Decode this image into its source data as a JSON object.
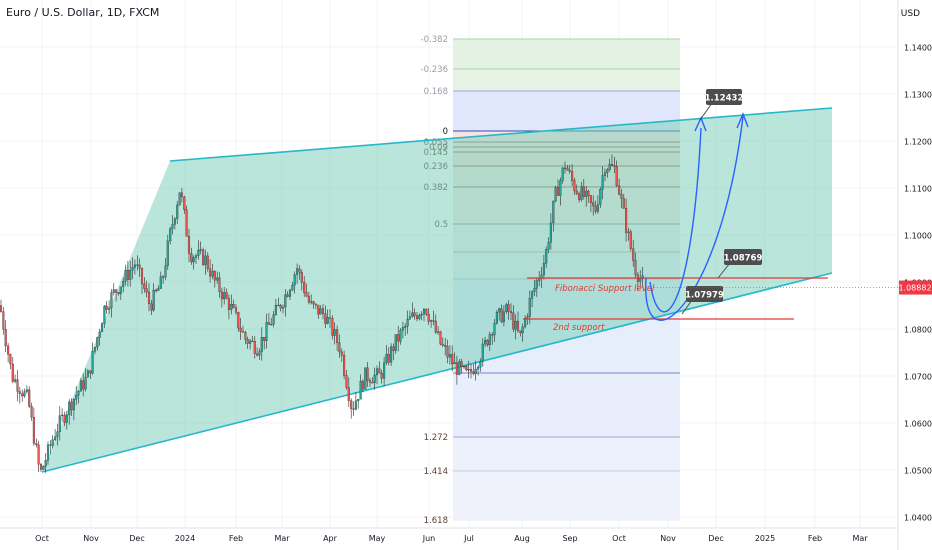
{
  "chart_data": {
    "type": "candlestick",
    "title": "Euro / U.S. Dollar, 1D, FXCM",
    "currency": "USD",
    "price_ticks": [
      "1.14000",
      "1.13000",
      "1.12000",
      "1.11000",
      "1.10000",
      "1.09000",
      "1.08000",
      "1.07000",
      "1.06000",
      "1.05000",
      "1.04000"
    ],
    "time_ticks": [
      "Oct",
      "Nov",
      "Dec",
      "2024",
      "Feb",
      "Mar",
      "Apr",
      "May",
      "Jun",
      "Jul",
      "Aug",
      "Sep",
      "Oct",
      "Nov",
      "Dec",
      "2025",
      "Feb",
      "Mar"
    ],
    "current_price": "1.08882",
    "fib_levels": [
      "-0.382",
      "-0.236",
      "0.168",
      "0",
      "0.055",
      "0.09",
      "0.145",
      "0.236",
      "0.382",
      "0.5",
      "1.272",
      "1.414",
      "1.618"
    ],
    "annotations": {
      "target": "1.12432",
      "support1_price": "1.08769",
      "support1_label": "Fibonacci Support level",
      "support2_price": "1.07979",
      "support2_label": "2nd support"
    },
    "colors": {
      "up": "#26a69a",
      "down": "#ef5350",
      "candle": "#3a3a3a",
      "channel_line": "#26b8c9",
      "channel_fill": "#80cfbb",
      "projection": "#2962ff",
      "support_line": "#e53935",
      "current_price_bg": "#f23645"
    }
  }
}
